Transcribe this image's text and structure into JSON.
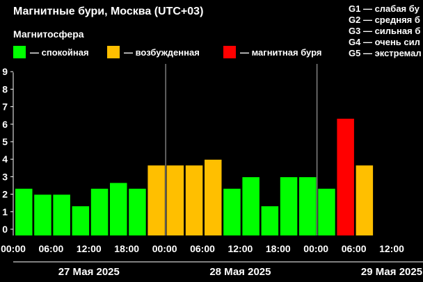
{
  "title": "Магнитные бури, Москва (UTC+03)",
  "subtitle": "Магнитосфера",
  "legend": [
    {
      "color": "#00ff00",
      "label": "— спокойная"
    },
    {
      "color": "#ffbf00",
      "label": "— возбужденная"
    },
    {
      "color": "#ff0000",
      "label": "— магнитная буря"
    }
  ],
  "storm_scale": [
    {
      "label": "G1 — слабая бу"
    },
    {
      "label": "G2 — средняя б"
    },
    {
      "label": "G3 — сильная б"
    },
    {
      "label": "G4 — очень сил"
    },
    {
      "label": "G5 — экстремал"
    }
  ],
  "chart_data": {
    "type": "bar",
    "ylim": [
      0,
      9
    ],
    "y_ticks": [
      "0",
      "1",
      "2",
      "3",
      "4",
      "5",
      "6",
      "7",
      "8",
      "9"
    ],
    "x_ticks": [
      "00:00",
      "06:00",
      "12:00",
      "18:00",
      "00:00",
      "06:00",
      "12:00",
      "18:00",
      "00:00",
      "06:00",
      "12:00"
    ],
    "dates": [
      "27 Мая 2025",
      "28 Мая 2025",
      "29 Мая 2025"
    ],
    "categories": [
      "27.05 00:00",
      "27.05 03:00",
      "27.05 06:00",
      "27.05 09:00",
      "27.05 12:00",
      "27.05 15:00",
      "27.05 18:00",
      "27.05 21:00",
      "28.05 00:00",
      "28.05 03:00",
      "28.05 06:00",
      "28.05 09:00",
      "28.05 12:00",
      "28.05 15:00",
      "28.05 18:00",
      "28.05 21:00",
      "29.05 00:00",
      "29.05 03:00",
      "29.05 06:00"
    ],
    "values": [
      2.67,
      2.33,
      2.33,
      1.67,
      2.67,
      3.0,
      2.67,
      4.0,
      4.0,
      4.0,
      4.33,
      2.67,
      3.33,
      1.67,
      3.33,
      3.33,
      2.67,
      6.67,
      4.0
    ],
    "colors": [
      "#00ff00",
      "#00ff00",
      "#00ff00",
      "#00ff00",
      "#00ff00",
      "#00ff00",
      "#00ff00",
      "#ffbf00",
      "#ffbf00",
      "#ffbf00",
      "#ffbf00",
      "#00ff00",
      "#00ff00",
      "#00ff00",
      "#00ff00",
      "#00ff00",
      "#00ff00",
      "#ff0000",
      "#ffbf00"
    ],
    "grid": false
  }
}
